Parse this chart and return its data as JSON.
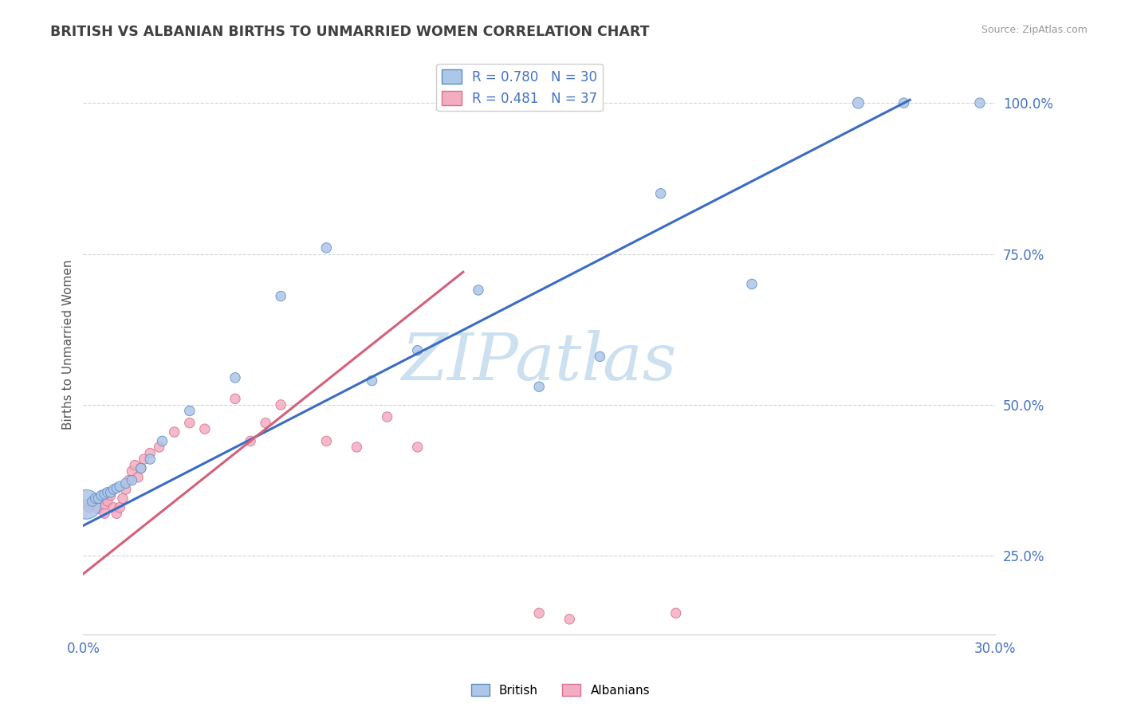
{
  "title": "BRITISH VS ALBANIAN BIRTHS TO UNMARRIED WOMEN CORRELATION CHART",
  "source": "Source: ZipAtlas.com",
  "ylabel": "Births to Unmarried Women",
  "xlim": [
    0.0,
    0.3
  ],
  "ylim": [
    0.12,
    1.08
  ],
  "xtick_positions": [
    0.0,
    0.3
  ],
  "xtick_labels": [
    "0.0%",
    "30.0%"
  ],
  "ytick_positions": [
    0.25,
    0.5,
    0.75,
    1.0
  ],
  "ytick_labels": [
    "25.0%",
    "50.0%",
    "75.0%",
    "100.0%"
  ],
  "british_color": "#aec6e8",
  "albanian_color": "#f4adc0",
  "british_edge_color": "#5b8ec4",
  "albanian_edge_color": "#d47090",
  "british_line_color": "#3a6cc4",
  "albanian_line_color": "#d4607a",
  "british_R": 0.78,
  "british_N": 30,
  "albanian_R": 0.481,
  "albanian_N": 37,
  "watermark": "ZIPatlas",
  "watermark_color": "#cce0f0",
  "background_color": "#ffffff",
  "grid_color": "#d0d0d0",
  "title_color": "#404040",
  "british_x": [
    0.001,
    0.003,
    0.004,
    0.005,
    0.006,
    0.007,
    0.008,
    0.009,
    0.01,
    0.011,
    0.012,
    0.014,
    0.016,
    0.019,
    0.022,
    0.026,
    0.035,
    0.05,
    0.065,
    0.08,
    0.095,
    0.11,
    0.13,
    0.15,
    0.17,
    0.19,
    0.22,
    0.255,
    0.27,
    0.295
  ],
  "british_y": [
    0.335,
    0.34,
    0.345,
    0.345,
    0.35,
    0.352,
    0.355,
    0.355,
    0.36,
    0.362,
    0.365,
    0.37,
    0.375,
    0.395,
    0.41,
    0.44,
    0.49,
    0.545,
    0.68,
    0.76,
    0.54,
    0.59,
    0.69,
    0.53,
    0.58,
    0.85,
    0.7,
    1.0,
    1.0,
    1.0
  ],
  "british_sizes": [
    700,
    80,
    80,
    80,
    80,
    80,
    80,
    80,
    80,
    80,
    80,
    80,
    80,
    80,
    80,
    80,
    80,
    80,
    80,
    80,
    80,
    80,
    80,
    80,
    80,
    80,
    80,
    100,
    80,
    80
  ],
  "albanian_x": [
    0.001,
    0.002,
    0.003,
    0.004,
    0.005,
    0.006,
    0.007,
    0.007,
    0.008,
    0.009,
    0.01,
    0.011,
    0.012,
    0.013,
    0.014,
    0.015,
    0.016,
    0.017,
    0.018,
    0.019,
    0.02,
    0.022,
    0.025,
    0.03,
    0.035,
    0.04,
    0.05,
    0.055,
    0.06,
    0.065,
    0.08,
    0.09,
    0.1,
    0.11,
    0.15,
    0.16,
    0.195
  ],
  "albanian_y": [
    0.335,
    0.33,
    0.335,
    0.34,
    0.328,
    0.345,
    0.335,
    0.32,
    0.34,
    0.35,
    0.33,
    0.32,
    0.33,
    0.345,
    0.36,
    0.375,
    0.39,
    0.4,
    0.38,
    0.395,
    0.41,
    0.42,
    0.43,
    0.455,
    0.47,
    0.46,
    0.51,
    0.44,
    0.47,
    0.5,
    0.44,
    0.43,
    0.48,
    0.43,
    0.155,
    0.145,
    0.155
  ],
  "albanian_sizes": [
    80,
    80,
    80,
    80,
    80,
    80,
    80,
    80,
    80,
    80,
    80,
    80,
    80,
    80,
    80,
    80,
    80,
    80,
    80,
    80,
    80,
    80,
    80,
    80,
    80,
    80,
    80,
    80,
    80,
    80,
    80,
    80,
    80,
    80,
    80,
    80,
    80
  ],
  "british_trend_x": [
    0.0,
    0.272
  ],
  "british_trend_y": [
    0.3,
    1.005
  ],
  "albanian_trend_x": [
    0.0,
    0.125
  ],
  "albanian_trend_y": [
    0.22,
    0.72
  ]
}
